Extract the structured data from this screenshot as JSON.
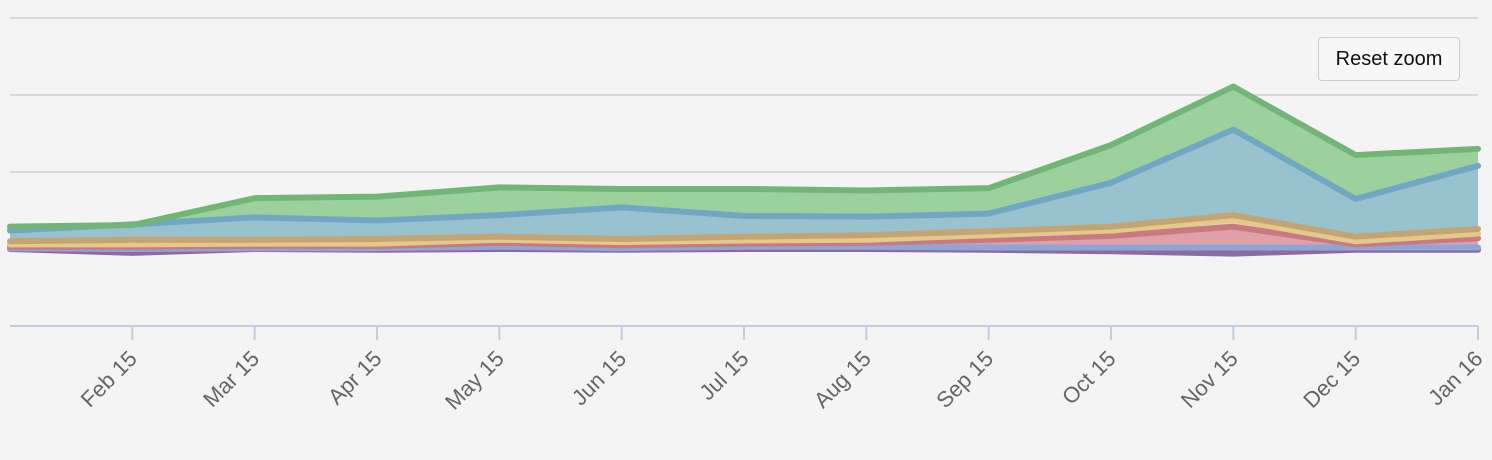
{
  "reset_zoom_label": "Reset zoom",
  "chart_data": {
    "type": "area",
    "stacked": true,
    "title": "",
    "xlabel": "",
    "ylabel": "",
    "grid": true,
    "x_labels": [
      "Feb 15",
      "Mar 15",
      "Apr 15",
      "May 15",
      "Jun 15",
      "Jul 15",
      "Aug 15",
      "Sep 15",
      "Oct 15",
      "Nov 15",
      "Dec 15",
      "Jan 16"
    ],
    "x": [
      0,
      1,
      2,
      3,
      4,
      5,
      6,
      7,
      8,
      9,
      10,
      11,
      12
    ],
    "x_label_start_index": 1,
    "ylim": [
      -1,
      3
    ],
    "y_grid": [
      -1,
      0,
      1,
      2,
      3
    ],
    "series": [
      {
        "color": "#8e6aa3",
        "fill": "#a58cbf",
        "values": [
          0,
          -0.05,
          0,
          -0.01,
          0,
          -0.01,
          0,
          0,
          -0.01,
          -0.03,
          -0.06,
          -0.01,
          -0.01
        ]
      },
      {
        "color": "#8fa5d6",
        "fill": "#a8b6e0",
        "values": [
          0.01,
          0.05,
          0.01,
          0.02,
          0.03,
          0.02,
          0.03,
          0.03,
          0.03,
          0.05,
          0.08,
          0.03,
          0.03
        ]
      },
      {
        "color": "#c97982",
        "fill": "#dd9ca3",
        "values": [
          0.02,
          0.03,
          0.03,
          0.03,
          0.05,
          0.04,
          0.04,
          0.05,
          0.1,
          0.15,
          0.27,
          0.04,
          0.12
        ]
      },
      {
        "color": "#e3c98c",
        "fill": "#efdcaa",
        "values": [
          0.03,
          0.03,
          0.03,
          0.03,
          0.04,
          0.04,
          0.04,
          0.04,
          0.06,
          0.07,
          0.09,
          0.04,
          0.06
        ]
      },
      {
        "color": "#c5a474",
        "fill": "#d2b688",
        "values": [
          0.04,
          0.06,
          0.05,
          0.06,
          0.04,
          0.04,
          0.05,
          0.06,
          0.05,
          0.05,
          0.06,
          0.06,
          0.06
        ]
      },
      {
        "color": "#6fa7c5",
        "fill": "#93bfcc",
        "values": [
          0.14,
          0.2,
          0.29,
          0.24,
          0.28,
          0.41,
          0.27,
          0.24,
          0.23,
          0.57,
          1.11,
          0.49,
          0.82
        ]
      },
      {
        "color": "#72b677",
        "fill": "#97cf98",
        "values": [
          0.05,
          -0.01,
          0.25,
          0.31,
          0.36,
          0.24,
          0.35,
          0.34,
          0.33,
          0.49,
          0.56,
          0.57,
          0.22
        ]
      }
    ]
  }
}
